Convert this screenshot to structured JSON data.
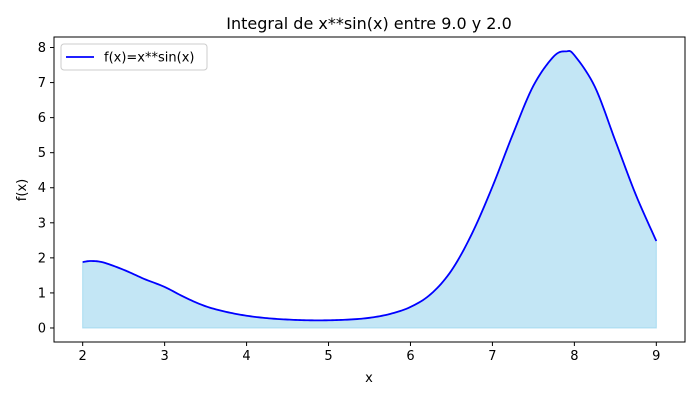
{
  "chart_data": {
    "type": "area",
    "title": "Integral de x**sin(x) entre 9.0 y 2.0",
    "xlabel": "x",
    "ylabel": "f(x)",
    "xlim": [
      1.65,
      9.35
    ],
    "ylim": [
      -0.4,
      8.3
    ],
    "x_ticks": [
      "2",
      "3",
      "4",
      "5",
      "6",
      "7",
      "8",
      "9"
    ],
    "y_ticks": [
      "0",
      "1",
      "2",
      "3",
      "4",
      "5",
      "6",
      "7",
      "8"
    ],
    "grid": false,
    "legend_position": "top-left",
    "series": [
      {
        "name": "f(x)=x**sin(x)",
        "color": "#0000ff",
        "fill_color": "#87ceeb",
        "x": [
          2.0,
          2.1,
          2.25,
          2.5,
          2.75,
          3.0,
          3.25,
          3.5,
          3.75,
          4.0,
          4.25,
          4.5,
          4.75,
          5.0,
          5.25,
          5.5,
          5.75,
          6.0,
          6.25,
          6.5,
          6.75,
          7.0,
          7.25,
          7.5,
          7.75,
          7.9,
          8.0,
          8.25,
          8.5,
          8.75,
          9.0
        ],
        "values": [
          1.88,
          1.91,
          1.87,
          1.66,
          1.4,
          1.17,
          0.87,
          0.62,
          0.46,
          0.35,
          0.28,
          0.24,
          0.22,
          0.22,
          0.24,
          0.29,
          0.4,
          0.6,
          0.97,
          1.64,
          2.69,
          4.03,
          5.53,
          6.91,
          7.75,
          7.89,
          7.78,
          6.88,
          5.34,
          3.8,
          2.48
        ]
      }
    ]
  }
}
